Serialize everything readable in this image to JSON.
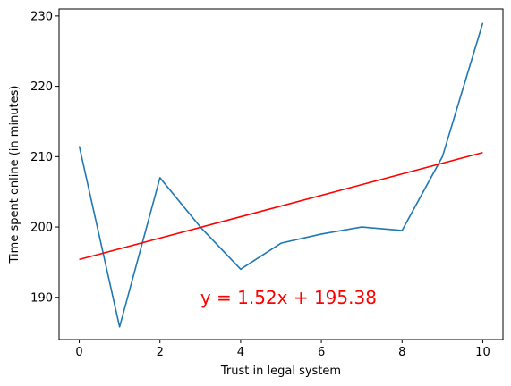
{
  "chart_data": {
    "type": "line",
    "xlabel": "Trust in legal system",
    "ylabel": "Time spent online (in minutes)",
    "xlim": [
      -0.5,
      10.5
    ],
    "ylim": [
      184,
      231
    ],
    "xticks": [
      0,
      2,
      4,
      6,
      8,
      10
    ],
    "yticks": [
      190,
      200,
      210,
      220,
      230
    ],
    "grid": false,
    "series": [
      {
        "color": "#1f77b4",
        "x": [
          0,
          1,
          2,
          3,
          4,
          5,
          6,
          7,
          8,
          9,
          10
        ],
        "y": [
          211.5,
          185.8,
          207.0,
          200.0,
          194.0,
          197.7,
          199.0,
          200.0,
          199.5,
          210.0,
          229.0
        ]
      },
      {
        "color": "#ff0000",
        "x": [
          0,
          10
        ],
        "y": [
          195.38,
          210.58
        ]
      }
    ],
    "annotations": [
      {
        "text": "y = 1.52x + 195.38",
        "x": 3,
        "y": 190,
        "color": "#ff0000"
      }
    ]
  }
}
